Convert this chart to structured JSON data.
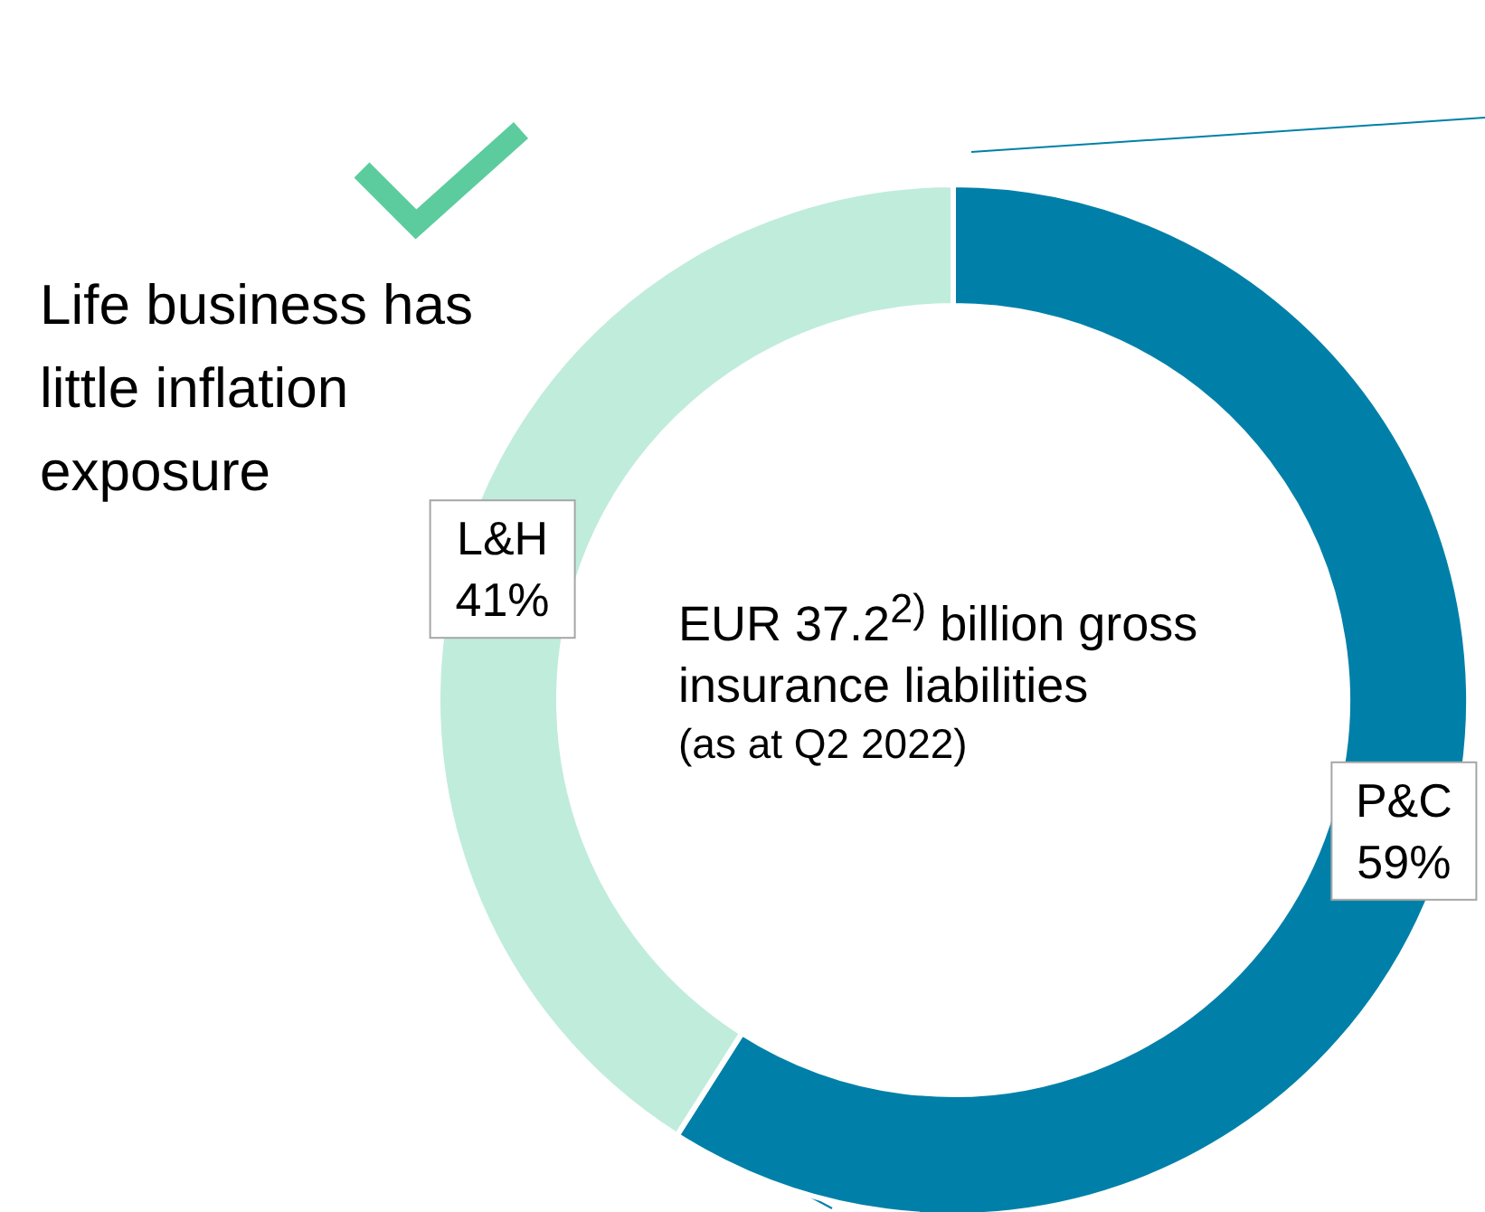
{
  "chart_data": {
    "type": "donut",
    "categories": [
      "P&C",
      "L&H"
    ],
    "values": [
      59,
      41
    ],
    "value_labels": [
      "59%",
      "41%"
    ],
    "colors": [
      "#0080a8",
      "#c0ecdc"
    ],
    "legend": false,
    "annotations": [
      "Life business has little inflation exposure",
      "EUR 37.2$^{2)}$ billion gross insurance liabilities",
      "(as at Q2 2022)"
    ]
  }
}
